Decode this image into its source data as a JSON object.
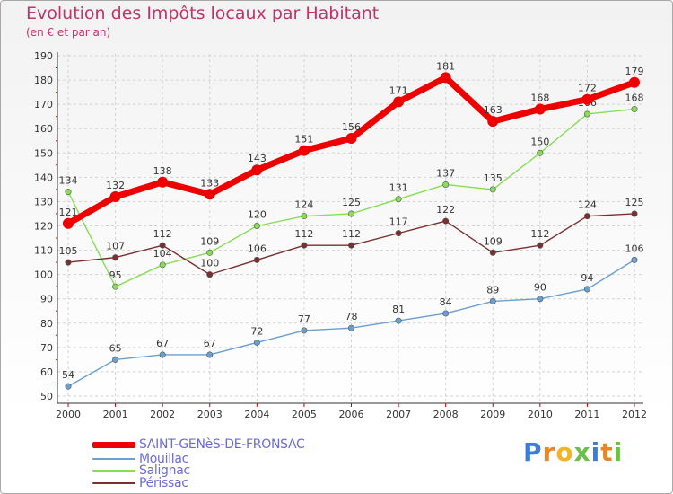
{
  "chart_data": {
    "type": "line",
    "title": "Evolution des Impôts locaux par Habitant",
    "subtitle": "(en € et par an)",
    "x": [
      "2000",
      "2001",
      "2002",
      "2003",
      "2004",
      "2005",
      "2006",
      "2007",
      "2008",
      "2009",
      "2010",
      "2011",
      "2012"
    ],
    "ylim": [
      50,
      190
    ],
    "yticks": [
      50,
      60,
      70,
      80,
      90,
      100,
      110,
      120,
      130,
      140,
      150,
      160,
      170,
      180,
      190
    ],
    "grid": true,
    "legend_position": "bottom-left",
    "series": [
      {
        "name": "SAINT-GENèS-DE-FRONSAC",
        "color": "#ee0000",
        "values": [
          121,
          132,
          138,
          133,
          143,
          151,
          156,
          171,
          181,
          163,
          168,
          172,
          179
        ]
      },
      {
        "name": "Mouillac",
        "color": "#6a9fd0",
        "values": [
          54,
          65,
          67,
          67,
          72,
          77,
          78,
          81,
          84,
          89,
          90,
          94,
          106
        ]
      },
      {
        "name": "Salignac",
        "color": "#88dd55",
        "values": [
          134,
          95,
          104,
          109,
          120,
          124,
          125,
          131,
          137,
          135,
          150,
          166,
          168
        ]
      },
      {
        "name": "Périssac",
        "color": "#7a3030",
        "values": [
          105,
          107,
          112,
          100,
          106,
          112,
          112,
          117,
          122,
          109,
          112,
          124,
          125
        ]
      }
    ]
  },
  "brand": {
    "letters": [
      "P",
      "r",
      "o",
      "x",
      "i",
      "t",
      "i"
    ],
    "colors": [
      "#3a7fd5",
      "#e8872a",
      "#f0b428",
      "#6cc04a",
      "#3a7fd5",
      "#e8872a",
      "#6cc04a"
    ]
  }
}
